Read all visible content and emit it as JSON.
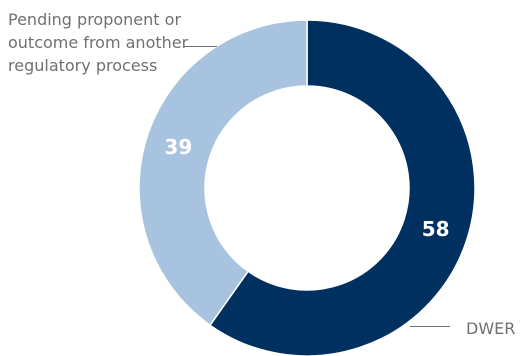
{
  "chart_data": {
    "type": "pie",
    "variant": "donut",
    "slices": [
      {
        "label": "DWER",
        "value": 58,
        "color": "#00305f"
      },
      {
        "label": "Pending proponent or outcome from another regulatory process",
        "value": 39,
        "color": "#a8c3df"
      }
    ],
    "data_label_color": "#ffffff",
    "legend": "callout labels outside the ring"
  }
}
